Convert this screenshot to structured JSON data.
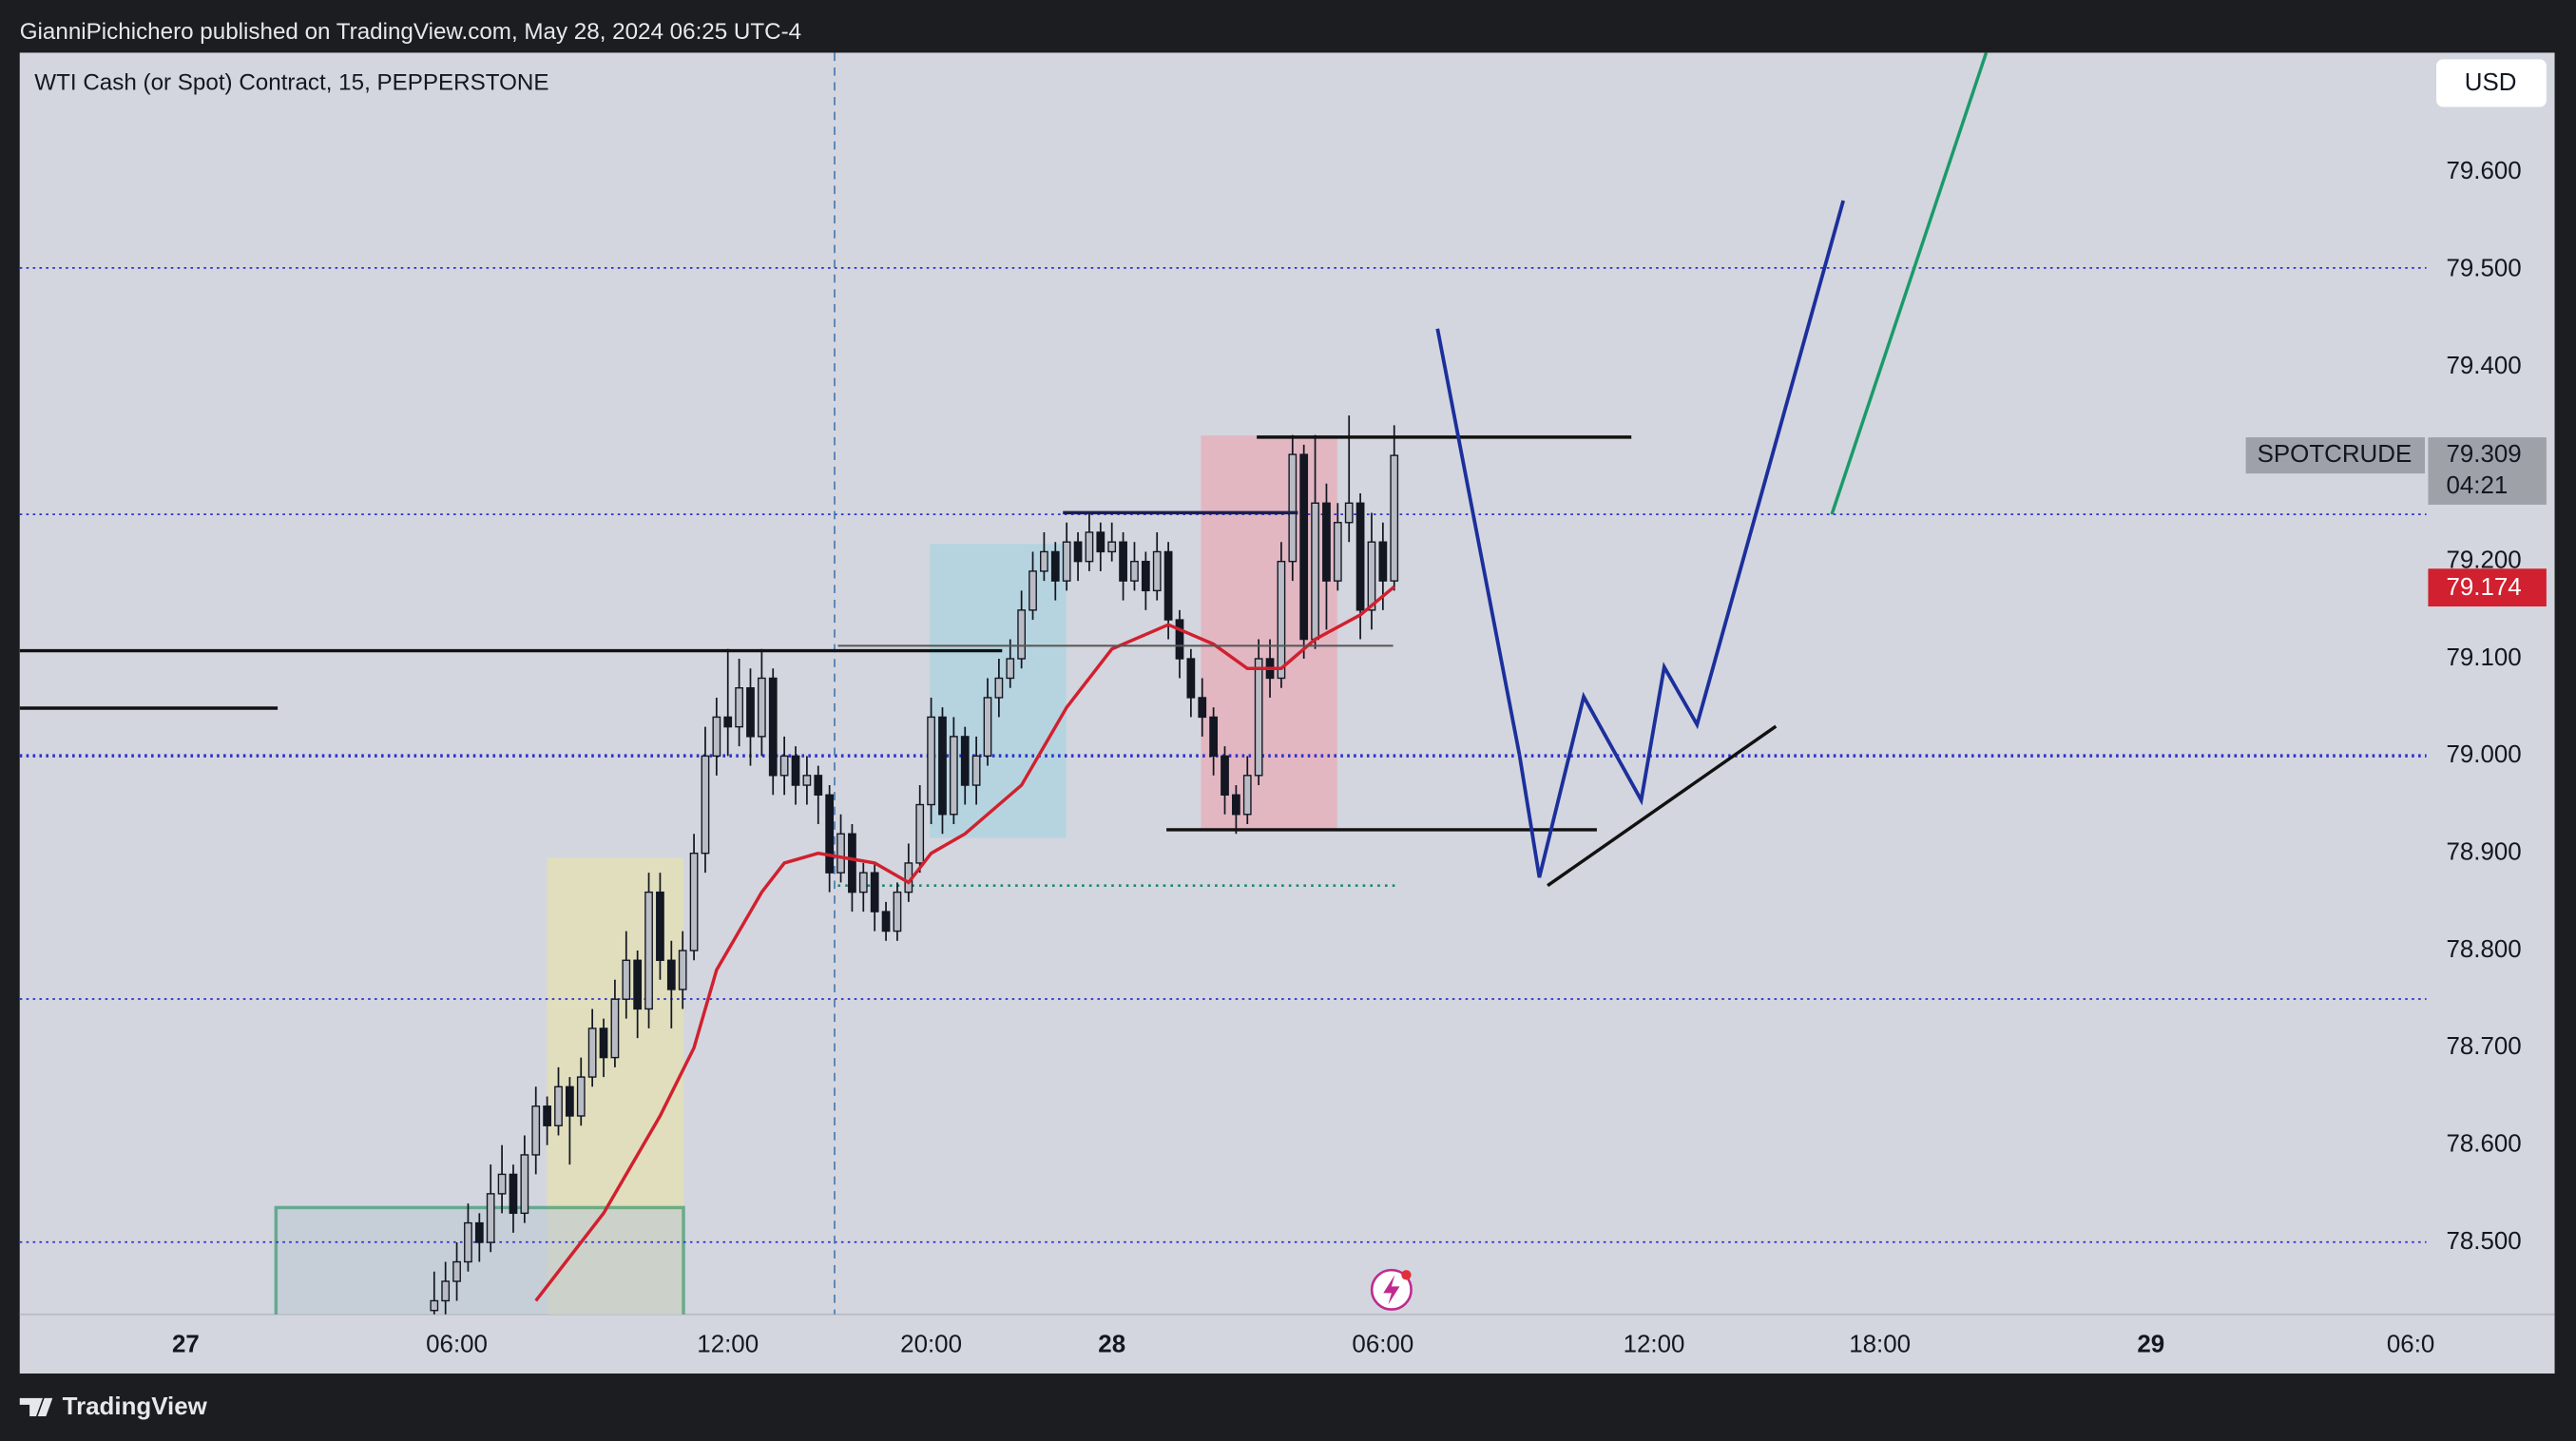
{
  "header": {
    "publisher": "GianniPichichero published on TradingView.com, May 28, 2024 06:25 UTC-4"
  },
  "footer": {
    "brand": "TradingView"
  },
  "chart_data": {
    "type": "candlestick",
    "title": "WTI Cash (or Spot) Contract, 15, PEPPERSTONE",
    "currency": "USD",
    "up_color": "#b9bcc4",
    "down_color": "#131722",
    "grid": false,
    "x": [
      -2,
      -1,
      0,
      1,
      2,
      3,
      4,
      5,
      6,
      7,
      8,
      9,
      10,
      11,
      12,
      13,
      14,
      15,
      16,
      17,
      18,
      19,
      20,
      21,
      22,
      23,
      24,
      25,
      26,
      27,
      28,
      29,
      30,
      31,
      32,
      33,
      34,
      35,
      36,
      37,
      38,
      39,
      40,
      41,
      42,
      43,
      44,
      45,
      46,
      47,
      48,
      49,
      50,
      51,
      52,
      53,
      54,
      55,
      56,
      57,
      58,
      59,
      60,
      61,
      62,
      63,
      64,
      65,
      66,
      67,
      68,
      69,
      70,
      71,
      72,
      73,
      74,
      75,
      76,
      77,
      78,
      79,
      80,
      81,
      82,
      83
    ],
    "open": [
      78.43,
      78.44,
      78.46,
      78.48,
      78.52,
      78.5,
      78.55,
      78.57,
      78.53,
      78.59,
      78.64,
      78.62,
      78.66,
      78.63,
      78.67,
      78.72,
      78.69,
      78.75,
      78.79,
      78.74,
      78.86,
      78.79,
      78.76,
      78.8,
      78.9,
      79.0,
      79.04,
      79.03,
      79.07,
      79.02,
      79.08,
      78.98,
      79.0,
      78.97,
      78.98,
      78.96,
      78.88,
      78.92,
      78.86,
      78.88,
      78.84,
      78.82,
      78.86,
      78.89,
      78.95,
      79.04,
      78.94,
      79.02,
      78.97,
      79.0,
      79.06,
      79.08,
      79.1,
      79.15,
      79.19,
      79.21,
      79.18,
      79.22,
      79.2,
      79.23,
      79.21,
      79.22,
      79.18,
      79.2,
      79.17,
      79.21,
      79.14,
      79.1,
      79.06,
      79.04,
      79.0,
      78.96,
      78.94,
      78.98,
      79.1,
      79.08,
      79.2,
      79.31,
      79.12,
      79.26,
      79.18,
      79.24,
      79.26,
      79.15,
      79.22,
      79.18
    ],
    "high": [
      78.47,
      78.48,
      78.5,
      78.54,
      78.53,
      78.58,
      78.6,
      78.58,
      78.61,
      78.66,
      78.65,
      78.68,
      78.67,
      78.69,
      78.74,
      78.73,
      78.77,
      78.82,
      78.8,
      78.88,
      78.88,
      78.81,
      78.82,
      78.92,
      79.03,
      79.06,
      79.11,
      79.1,
      79.09,
      79.11,
      79.09,
      79.02,
      79.01,
      79.0,
      78.99,
      78.97,
      78.94,
      78.93,
      78.89,
      78.89,
      78.85,
      78.87,
      78.91,
      78.97,
      79.06,
      79.05,
      79.04,
      79.03,
      79.02,
      79.08,
      79.1,
      79.12,
      79.17,
      79.21,
      79.23,
      79.22,
      79.24,
      79.23,
      79.25,
      79.24,
      79.24,
      79.23,
      79.22,
      79.21,
      79.23,
      79.22,
      79.15,
      79.11,
      79.08,
      79.05,
      79.01,
      78.97,
      79.0,
      79.12,
      79.12,
      79.22,
      79.33,
      79.32,
      79.33,
      79.28,
      79.26,
      79.35,
      79.27,
      79.25,
      79.24,
      79.34
    ],
    "low": [
      78.41,
      78.42,
      78.44,
      78.47,
      78.48,
      78.49,
      78.53,
      78.51,
      78.52,
      78.57,
      78.6,
      78.61,
      78.58,
      78.62,
      78.66,
      78.67,
      78.68,
      78.73,
      78.71,
      78.72,
      78.77,
      78.72,
      78.74,
      78.79,
      78.88,
      78.98,
      79.0,
      79.01,
      78.99,
      79.0,
      78.96,
      78.96,
      78.95,
      78.95,
      78.93,
      78.86,
      78.87,
      78.84,
      78.84,
      78.82,
      78.81,
      78.81,
      78.85,
      78.88,
      78.93,
      78.92,
      78.93,
      78.95,
      78.95,
      78.99,
      79.04,
      79.07,
      79.09,
      79.14,
      79.18,
      79.16,
      79.17,
      79.18,
      79.19,
      79.19,
      79.2,
      79.16,
      79.17,
      79.15,
      79.16,
      79.12,
      79.08,
      79.04,
      79.02,
      78.98,
      78.94,
      78.92,
      78.93,
      78.97,
      79.06,
      79.07,
      79.18,
      79.1,
      79.11,
      79.13,
      79.17,
      79.22,
      79.12,
      79.13,
      79.15,
      79.17
    ],
    "close": [
      78.44,
      78.46,
      78.48,
      78.52,
      78.5,
      78.55,
      78.57,
      78.53,
      78.59,
      78.64,
      78.62,
      78.66,
      78.63,
      78.67,
      78.72,
      78.69,
      78.75,
      78.79,
      78.74,
      78.86,
      78.79,
      78.76,
      78.8,
      78.9,
      79.0,
      79.04,
      79.03,
      79.07,
      79.02,
      79.08,
      78.98,
      79.0,
      78.97,
      78.98,
      78.96,
      78.88,
      78.92,
      78.86,
      78.88,
      78.84,
      78.82,
      78.86,
      78.89,
      78.95,
      79.04,
      78.94,
      79.02,
      78.97,
      79.0,
      79.06,
      79.08,
      79.1,
      79.15,
      79.19,
      79.21,
      79.18,
      79.22,
      79.2,
      79.23,
      79.21,
      79.22,
      79.18,
      79.2,
      79.17,
      79.21,
      79.14,
      79.1,
      79.06,
      79.04,
      79.0,
      78.96,
      78.94,
      78.98,
      79.1,
      79.08,
      79.2,
      79.31,
      79.12,
      79.26,
      79.18,
      79.24,
      79.26,
      79.15,
      79.22,
      79.18,
      79.309
    ],
    "ma": {
      "color": "#d1202f",
      "x": [
        7,
        13,
        18,
        21,
        23,
        27,
        29,
        32,
        37,
        40,
        42,
        45,
        50,
        54,
        58,
        63,
        67,
        70,
        73,
        76,
        80,
        83
      ],
      "values": [
        78.44,
        78.53,
        78.63,
        78.7,
        78.78,
        78.86,
        78.89,
        78.9,
        78.89,
        78.87,
        78.9,
        78.92,
        78.97,
        79.05,
        79.11,
        79.135,
        79.115,
        79.09,
        79.09,
        79.12,
        79.145,
        79.174
      ]
    },
    "last_price": {
      "symbol": "SPOTCRUDE",
      "countdown": "04:21"
    },
    "xlim": [
      -38.7,
      174.4
    ],
    "xticks": [
      {
        "value": -24,
        "label": "27"
      },
      {
        "value": 0,
        "label": "06:00"
      },
      {
        "value": 24,
        "label": "12:00"
      },
      {
        "value": 42,
        "label": "20:00"
      },
      {
        "value": 58,
        "label": "28"
      },
      {
        "value": 82,
        "label": "06:00"
      },
      {
        "value": 106,
        "label": "12:00"
      },
      {
        "value": 126,
        "label": "18:00"
      },
      {
        "value": 150,
        "label": "29"
      },
      {
        "value": 173,
        "label": "06:0"
      }
    ],
    "ylim": [
      78.426,
      79.723
    ],
    "yticks": [
      {
        "value": 79.6,
        "label": "79.600"
      },
      {
        "value": 79.5,
        "label": "79.500"
      },
      {
        "value": 79.4,
        "label": "79.400"
      },
      {
        "value": 79.2,
        "label": "79.200"
      },
      {
        "value": 79.1,
        "label": "79.100"
      },
      {
        "value": 79.0,
        "label": "79.000"
      },
      {
        "value": 78.9,
        "label": "78.900"
      },
      {
        "value": 78.8,
        "label": "78.800"
      },
      {
        "value": 78.7,
        "label": "78.700"
      },
      {
        "value": 78.6,
        "label": "78.600"
      },
      {
        "value": 78.5,
        "label": "78.500"
      }
    ]
  }
}
